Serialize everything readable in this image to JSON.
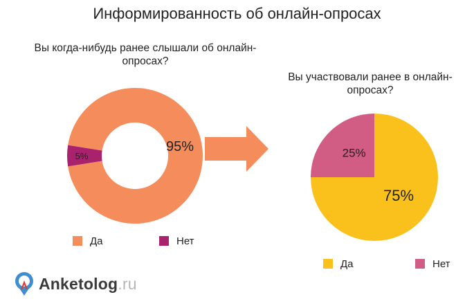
{
  "title": "Информированность об онлайн-опросах",
  "colors": {
    "yes_left": "#F58C5C",
    "no_left": "#A8226E",
    "yes_right": "#FAC11C",
    "no_right": "#D15C84",
    "arrow": "#F58C5C"
  },
  "logo": {
    "name": "Anketolog",
    "suffix": ".ru",
    "icon": "location-pin-logo-icon"
  },
  "chart_data": [
    {
      "type": "pie",
      "variant": "donut",
      "title": "Вы когда-нибудь ранее  слышали об онлайн-опросах?",
      "labels": [
        "Да",
        "Нет"
      ],
      "values": [
        95,
        5
      ],
      "data_labels": [
        "95%",
        "5%"
      ],
      "legend": {
        "placement": "bottom",
        "items": [
          "Да",
          "Нет"
        ]
      }
    },
    {
      "type": "pie",
      "title": "Вы участвовали ранее в онлайн-опросах?",
      "labels": [
        "Да",
        "Нет"
      ],
      "values": [
        75,
        25
      ],
      "data_labels": [
        "75%",
        "25%"
      ],
      "legend": {
        "placement": "bottom",
        "items": [
          "Да",
          "Нет"
        ]
      }
    }
  ]
}
